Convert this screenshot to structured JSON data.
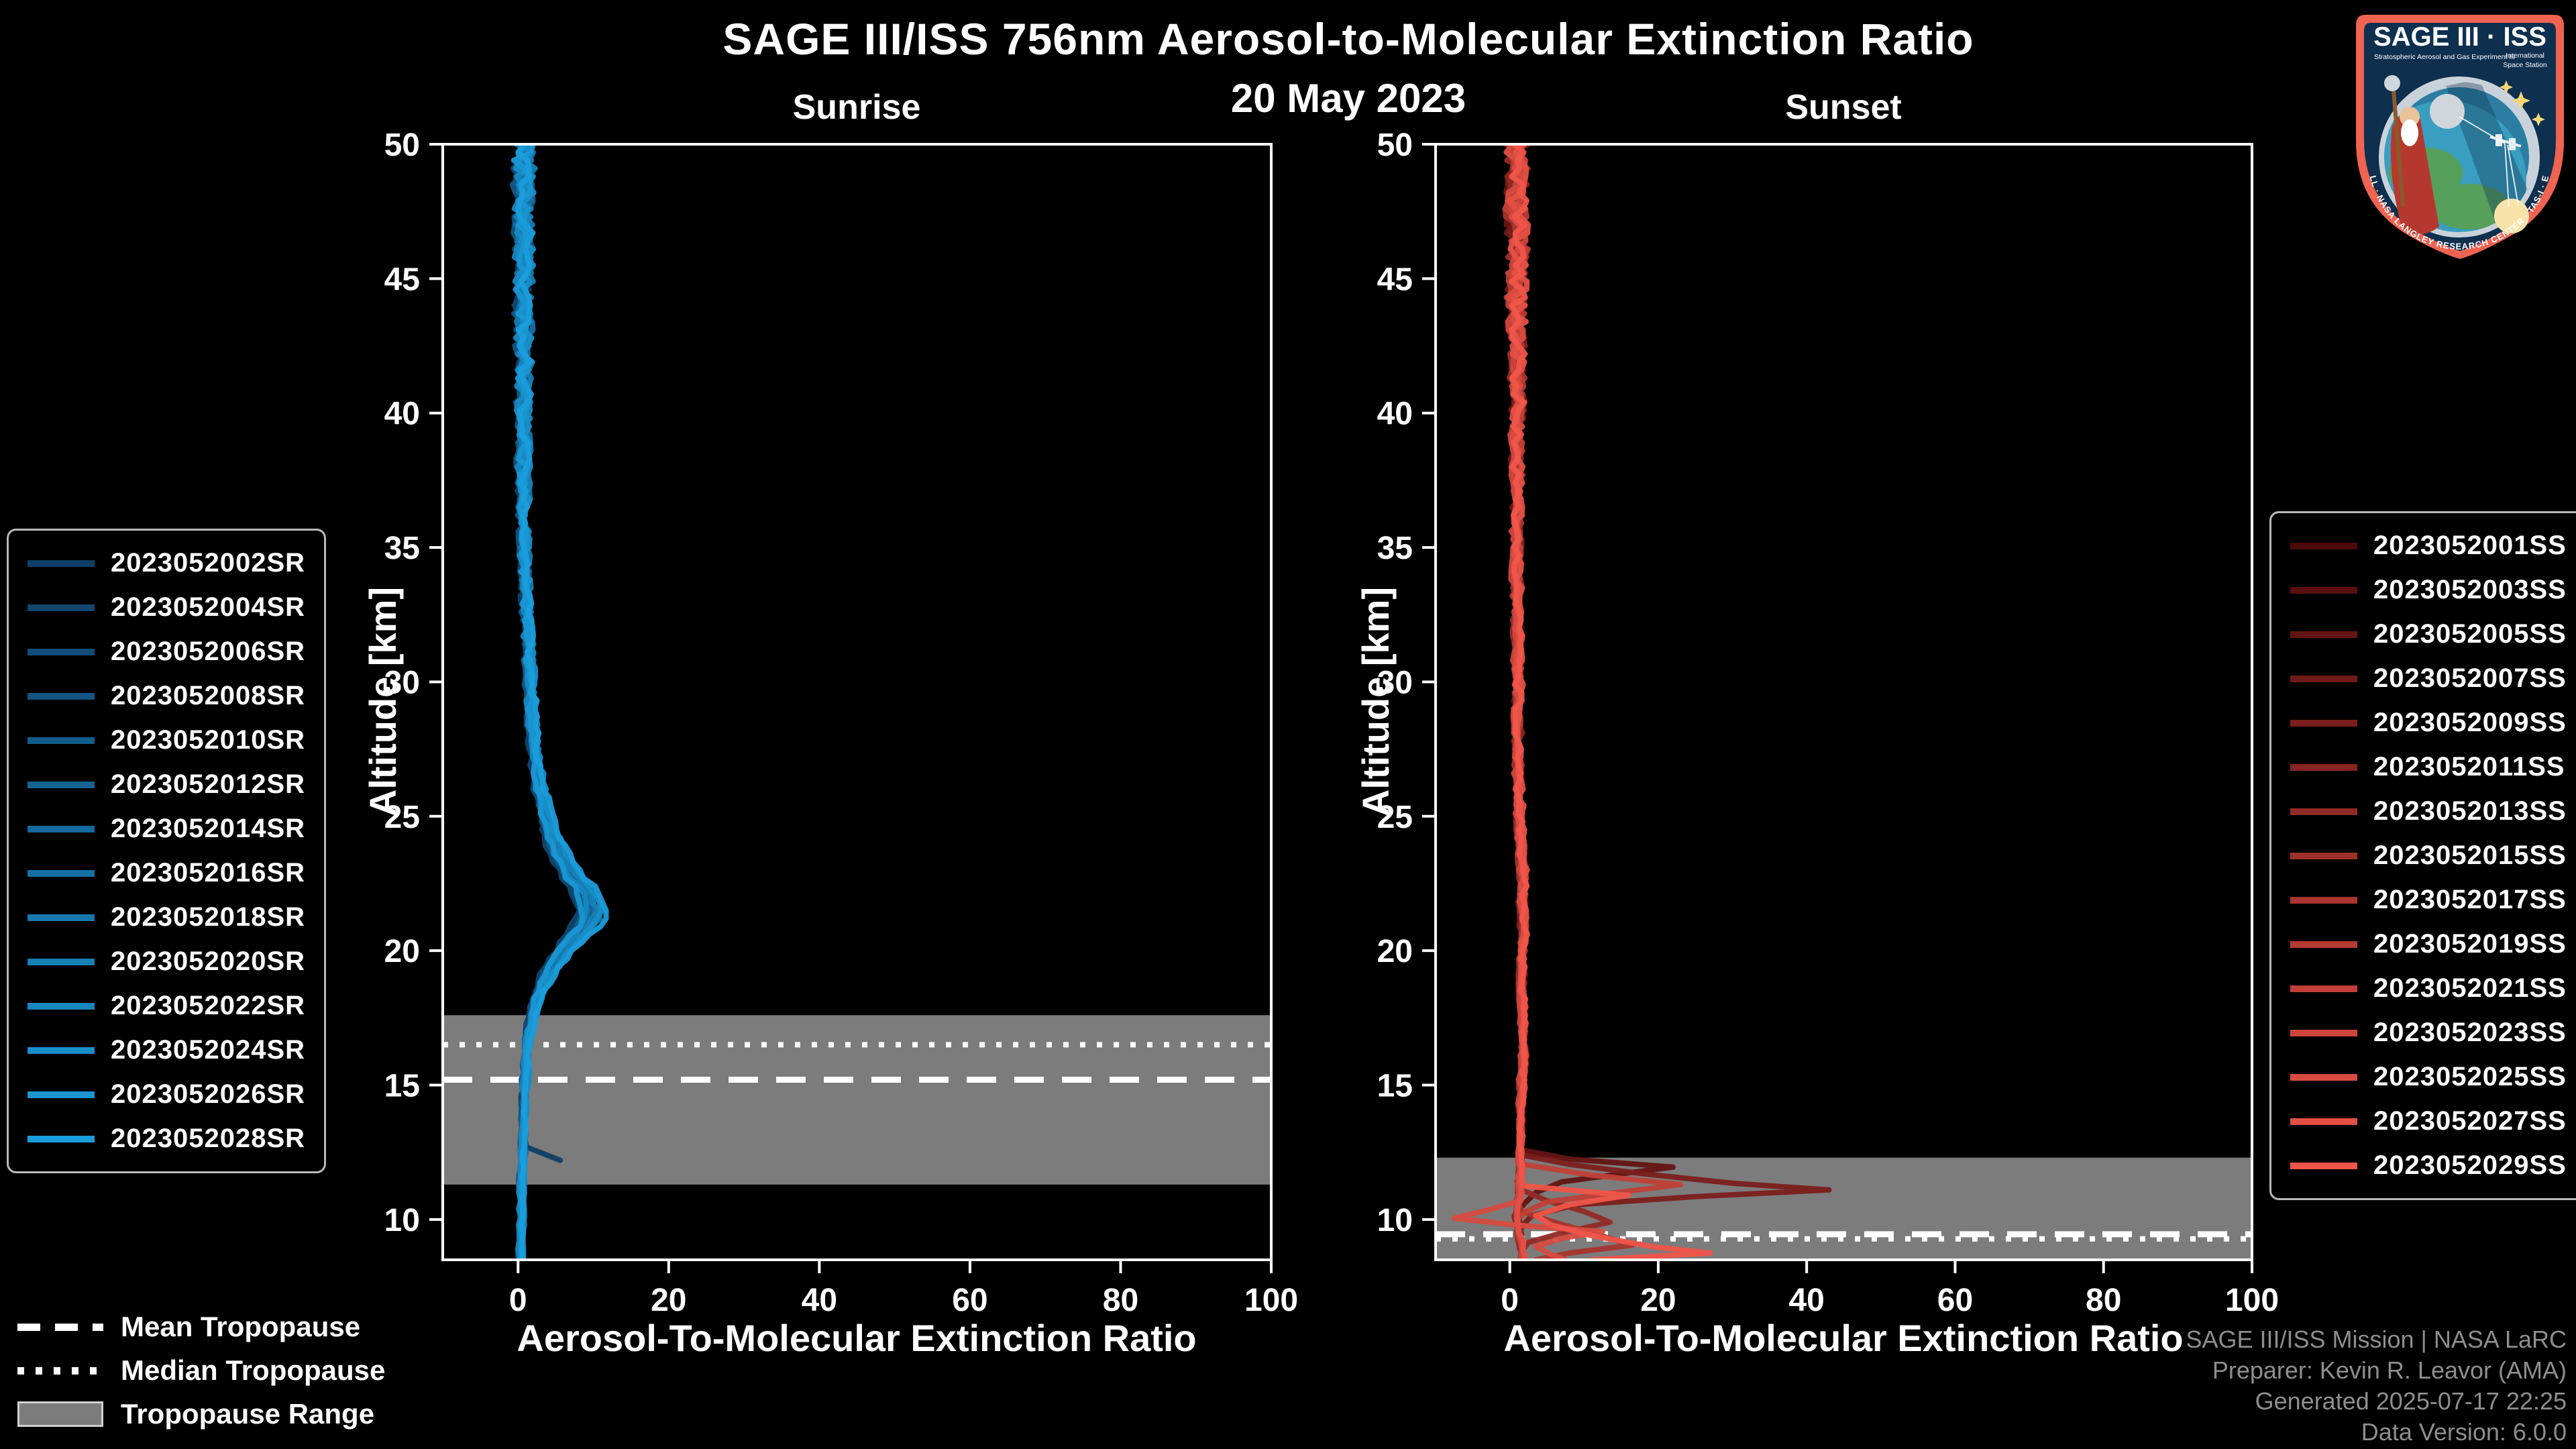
{
  "page": {
    "title": "SAGE III/ISS 756nm Aerosol-to-Molecular Extinction Ratio",
    "date": "20 May 2023"
  },
  "tropopause_legend": {
    "mean": "Mean Tropopause",
    "median": "Median Tropopause",
    "range": "Tropopause Range"
  },
  "footer": {
    "line1": "SAGE III/ISS Mission | NASA LaRC",
    "line2": "Preparer: Kevin R. Leavor (AMA)",
    "line3": "Generated 2025-07-17 22:25",
    "line4": "Data Version: 6.0.0"
  },
  "logo": {
    "title": "SAGE III · ISS",
    "subtitle_left": "Stratospheric Aerosol and Gas Experiment III",
    "subtitle_right_1": "International",
    "subtitle_right_2": "Space Station",
    "ring_text": "BALL · NASA LANGLEY RESEARCH CENTER · TAS-I · ESA",
    "border_color": "#ee6352",
    "field_color": "#0e2f4e"
  },
  "chart_data": {
    "type": "line",
    "title": "SAGE III/ISS 756nm Aerosol-to-Molecular Extinction Ratio",
    "subtitle": "20 May 2023",
    "legend_position": "outside-left-and-right",
    "grid": false,
    "background": "#000000",
    "panels": [
      {
        "id": "sunrise",
        "title": "Sunrise",
        "xlabel": "Aerosol-To-Molecular Extinction Ratio",
        "ylabel": "Altitude [km]",
        "xlim": [
          -10,
          100
        ],
        "ylim": [
          8.5,
          50
        ],
        "xticks": [
          0,
          20,
          40,
          60,
          80,
          100
        ],
        "yticks": [
          10,
          15,
          20,
          25,
          30,
          35,
          40,
          45,
          50
        ],
        "tropopause": {
          "mean": 15.2,
          "median": 16.5,
          "range": [
            11.3,
            17.6
          ]
        },
        "noise": [
          [
            50,
            1.4
          ],
          [
            46,
            1.2
          ],
          [
            42,
            0.9
          ],
          [
            38,
            0.7
          ],
          [
            34,
            0.6
          ],
          [
            30,
            0.5
          ],
          [
            26,
            0.45
          ],
          [
            22,
            0.4
          ],
          [
            18,
            0.3
          ],
          [
            14,
            0.2
          ],
          [
            8.5,
            0.15
          ]
        ],
        "base": [
          [
            50,
            0.8
          ],
          [
            48,
            0.7
          ],
          [
            46,
            0.9
          ],
          [
            44,
            0.7
          ],
          [
            42,
            0.8
          ],
          [
            40,
            0.8
          ],
          [
            38,
            0.7
          ],
          [
            36,
            0.8
          ],
          [
            34,
            1.0
          ],
          [
            32,
            1.3
          ],
          [
            30,
            1.6
          ],
          [
            29,
            1.8
          ],
          [
            28,
            2.0
          ],
          [
            27,
            2.3
          ],
          [
            26,
            2.9
          ],
          [
            25,
            3.6
          ],
          [
            24.5,
            4.1
          ],
          [
            24,
            4.7
          ],
          [
            23.5,
            5.5
          ],
          [
            23,
            6.5
          ],
          [
            22.5,
            7.7
          ],
          [
            22,
            8.9
          ],
          [
            21.6,
            9.5
          ],
          [
            21.2,
            9.2
          ],
          [
            20.8,
            8.3
          ],
          [
            20.4,
            7.1
          ],
          [
            20,
            5.9
          ],
          [
            19.5,
            4.6
          ],
          [
            19,
            3.6
          ],
          [
            18.5,
            2.8
          ],
          [
            18,
            2.2
          ],
          [
            17.5,
            1.8
          ],
          [
            17,
            1.5
          ],
          [
            16.5,
            1.3
          ],
          [
            16,
            1.1
          ],
          [
            15.5,
            1.0
          ],
          [
            15,
            0.9
          ],
          [
            14,
            0.8
          ],
          [
            13,
            0.7
          ],
          [
            12,
            0.6
          ],
          [
            11,
            0.5
          ],
          [
            10,
            0.5
          ],
          [
            9,
            0.4
          ],
          [
            8.5,
            0.4
          ]
        ],
        "series": [
          {
            "label": "2023052002SR",
            "color": "#0F3F66",
            "scale": 0.9,
            "dx": -0.2,
            "min_alt": 12.2,
            "override": [
              [
                13.2,
                0.8
              ],
              [
                12.7,
                1.1
              ],
              [
                12.2,
                5.6
              ]
            ]
          },
          {
            "label": "2023052004SR",
            "color": "#10466F",
            "scale": 0.85,
            "dx": -0.1
          },
          {
            "label": "2023052006SR",
            "color": "#114D78",
            "scale": 0.95,
            "dx": 0.1
          },
          {
            "label": "2023052008SR",
            "color": "#125581",
            "scale": 1.0,
            "dx": -0.3
          },
          {
            "label": "2023052010SR",
            "color": "#125C8A",
            "scale": 0.9,
            "dx": 0.2
          },
          {
            "label": "2023052012SR",
            "color": "#136393",
            "scale": 1.05,
            "dx": 0.0
          },
          {
            "label": "2023052014SR",
            "color": "#146A9C",
            "scale": 1.12,
            "dx": -0.2
          },
          {
            "label": "2023052016SR",
            "color": "#1571A5",
            "scale": 0.98,
            "dx": 0.3
          },
          {
            "label": "2023052018SR",
            "color": "#1679AE",
            "scale": 1.18,
            "dx": -0.1
          },
          {
            "label": "2023052020SR",
            "color": "#1780B7",
            "scale": 1.08,
            "dx": 0.1
          },
          {
            "label": "2023052022SR",
            "color": "#1887C0",
            "scale": 1.02,
            "dx": -0.25
          },
          {
            "label": "2023052024SR",
            "color": "#188EC9",
            "scale": 1.15,
            "dx": 0.15
          },
          {
            "label": "2023052026SR",
            "color": "#1996D2",
            "scale": 0.92,
            "dx": 0.05
          },
          {
            "label": "2023052028SR",
            "color": "#1A9DDB",
            "scale": 1.25,
            "dx": -0.05
          }
        ]
      },
      {
        "id": "sunset",
        "title": "Sunset",
        "xlabel": "Aerosol-To-Molecular Extinction Ratio",
        "ylabel": "Altitude [km]",
        "xlim": [
          -10,
          100
        ],
        "ylim": [
          8.5,
          50
        ],
        "xticks": [
          0,
          20,
          40,
          60,
          80,
          100
        ],
        "yticks": [
          10,
          15,
          20,
          25,
          30,
          35,
          40,
          45,
          50
        ],
        "tropopause": {
          "mean": 9.45,
          "median": 9.28,
          "range": [
            8.5,
            12.3
          ]
        },
        "noise": [
          [
            50,
            1.6
          ],
          [
            46,
            1.3
          ],
          [
            42,
            1.0
          ],
          [
            38,
            0.7
          ],
          [
            34,
            0.55
          ],
          [
            30,
            0.5
          ],
          [
            25,
            0.45
          ],
          [
            20,
            0.4
          ],
          [
            15,
            0.3
          ],
          [
            12.5,
            0.25
          ],
          [
            8.5,
            0.2
          ]
        ],
        "base": [
          [
            50,
            1.0
          ],
          [
            48,
            0.8
          ],
          [
            46,
            1.1
          ],
          [
            44,
            0.8
          ],
          [
            42,
            1.0
          ],
          [
            40,
            1.1
          ],
          [
            38,
            0.9
          ],
          [
            36,
            1.0
          ],
          [
            34,
            0.9
          ],
          [
            32,
            1.0
          ],
          [
            30,
            1.1
          ],
          [
            28,
            1.1
          ],
          [
            26,
            1.2
          ],
          [
            24,
            1.4
          ],
          [
            23,
            1.7
          ],
          [
            22.5,
            1.9
          ],
          [
            22,
            1.6
          ],
          [
            21,
            1.8
          ],
          [
            20,
            1.7
          ],
          [
            19,
            1.6
          ],
          [
            18,
            1.7
          ],
          [
            17,
            1.8
          ],
          [
            16,
            1.9
          ],
          [
            15,
            1.6
          ],
          [
            14,
            1.5
          ],
          [
            13,
            1.4
          ],
          [
            12.5,
            1.3
          ],
          [
            12,
            1.5
          ],
          [
            11.5,
            1.3
          ],
          [
            11,
            1.2
          ],
          [
            10.5,
            1.0
          ],
          [
            10,
            0.9
          ],
          [
            9.5,
            1.2
          ],
          [
            9,
            1.6
          ],
          [
            8.5,
            1.9
          ]
        ],
        "series": [
          {
            "label": "2023052001SS",
            "color": "#4D0A0A",
            "scale": 1.0,
            "dx": 0.0
          },
          {
            "label": "2023052003SS",
            "color": "#590F0F",
            "scale": 1.0,
            "dx": 0.15
          },
          {
            "label": "2023052005SS",
            "color": "#641513",
            "scale": 1.0,
            "dx": -0.05,
            "override": [
              [
                12.6,
                1.4
              ],
              [
                12.25,
                8
              ],
              [
                11.95,
                22
              ],
              [
                11.7,
                15
              ],
              [
                11.4,
                7
              ],
              [
                11.0,
                3.5
              ],
              [
                10.6,
                2
              ]
            ]
          },
          {
            "label": "2023052007SS",
            "color": "#701A18",
            "scale": 1.0,
            "dx": -0.15
          },
          {
            "label": "2023052009SS",
            "color": "#7B1F1C",
            "scale": 1.0,
            "dx": 0.1,
            "override": [
              [
                12.4,
                1.6
              ],
              [
                12.05,
                8
              ],
              [
                11.7,
                18
              ],
              [
                11.35,
                30
              ],
              [
                11.1,
                43
              ],
              [
                10.85,
                25
              ],
              [
                10.55,
                9
              ],
              [
                10.15,
                3
              ],
              [
                9.8,
                1.8
              ]
            ]
          },
          {
            "label": "2023052011SS",
            "color": "#872521",
            "scale": 1.0,
            "dx": 0.2
          },
          {
            "label": "2023052013SS",
            "color": "#922A25",
            "scale": 1.0,
            "dx": -0.1,
            "override": [
              [
                11.1,
                1.6
              ],
              [
                10.7,
                5
              ],
              [
                10.3,
                10
              ],
              [
                9.9,
                13.5
              ],
              [
                9.5,
                7
              ],
              [
                9.15,
                2.5
              ]
            ]
          },
          {
            "label": "2023052015SS",
            "color": "#9E302A",
            "scale": 1.0,
            "dx": -0.2
          },
          {
            "label": "2023052017SS",
            "color": "#A9352E",
            "scale": 1.0,
            "dx": 0.05,
            "override": [
              [
                10.3,
                1.6
              ],
              [
                9.9,
                6
              ],
              [
                9.5,
                11
              ],
              [
                9.05,
                16.5
              ],
              [
                8.75,
                8
              ],
              [
                8.5,
                3.5
              ]
            ]
          },
          {
            "label": "2023052019SS",
            "color": "#B53A32",
            "scale": 1.0,
            "dx": 0.1
          },
          {
            "label": "2023052021SS",
            "color": "#C04037",
            "scale": 1.0,
            "dx": -0.05,
            "override": [
              [
                12.05,
                1.8
              ],
              [
                11.65,
                11
              ],
              [
                11.3,
                23
              ],
              [
                10.95,
                13
              ],
              [
                10.65,
                5
              ],
              [
                10.3,
                2.2
              ]
            ]
          },
          {
            "label": "2023052023SS",
            "color": "#CC453C",
            "scale": 1.0,
            "dx": -0.2
          },
          {
            "label": "2023052025SS",
            "color": "#D84B40",
            "scale": 1.0,
            "dx": 0.0,
            "override": [
              [
                10.7,
                1.5
              ],
              [
                10.35,
                -3
              ],
              [
                10.05,
                -7.5
              ],
              [
                9.8,
                0.5
              ],
              [
                9.55,
                12.5
              ],
              [
                9.3,
                7
              ],
              [
                9.0,
                3.5
              ],
              [
                8.7,
                5.5
              ],
              [
                8.5,
                7.5
              ]
            ]
          },
          {
            "label": "2023052027SS",
            "color": "#E35044",
            "scale": 1.0,
            "dx": 0.25
          },
          {
            "label": "2023052029SS",
            "color": "#EF5549",
            "scale": 1.0,
            "dx": 0.1,
            "override": [
              [
                11.25,
                1.8
              ],
              [
                10.9,
                16
              ],
              [
                10.55,
                8
              ],
              [
                10.15,
                3.5
              ],
              [
                9.8,
                5.5
              ],
              [
                9.4,
                11
              ],
              [
                9.0,
                19
              ],
              [
                8.75,
                27
              ],
              [
                8.5,
                11
              ]
            ]
          }
        ]
      }
    ]
  }
}
